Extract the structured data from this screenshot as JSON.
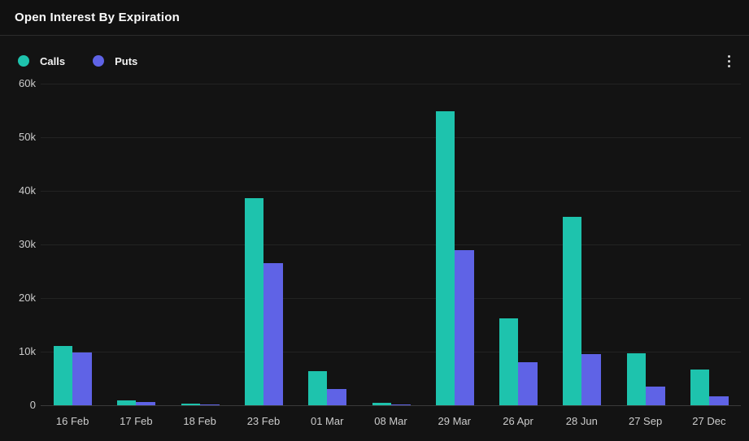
{
  "header": {
    "title": "Open Interest By Expiration"
  },
  "legend": {
    "items": [
      {
        "label": "Calls",
        "color": "#1ec3ad"
      },
      {
        "label": "Puts",
        "color": "#5f63e6"
      }
    ]
  },
  "menu": {
    "kebab_icon": "more-options"
  },
  "colors": {
    "background": "#131313",
    "grid": "#222322",
    "axis_text": "#cccccc",
    "calls": "#1ec3ad",
    "puts": "#5f63e6"
  },
  "chart_data": {
    "type": "bar",
    "title": "Open Interest By Expiration",
    "categories": [
      "16 Feb",
      "17 Feb",
      "18 Feb",
      "23 Feb",
      "01 Mar",
      "08 Mar",
      "29 Mar",
      "26 Apr",
      "28 Jun",
      "27 Sep",
      "27 Dec"
    ],
    "series": [
      {
        "name": "Calls",
        "color": "#1ec3ad",
        "values": [
          11000,
          900,
          300,
          38600,
          6400,
          500,
          54800,
          16200,
          35200,
          9700,
          6700
        ]
      },
      {
        "name": "Puts",
        "color": "#5f63e6",
        "values": [
          9800,
          600,
          100,
          26500,
          3100,
          200,
          28900,
          8000,
          9500,
          3500,
          1600
        ]
      }
    ],
    "xlabel": "",
    "ylabel": "",
    "ylim": [
      0,
      60000
    ],
    "yticks": [
      {
        "value": 0,
        "label": "0"
      },
      {
        "value": 10000,
        "label": "10k"
      },
      {
        "value": 20000,
        "label": "20k"
      },
      {
        "value": 30000,
        "label": "30k"
      },
      {
        "value": 40000,
        "label": "40k"
      },
      {
        "value": 50000,
        "label": "50k"
      },
      {
        "value": 60000,
        "label": "60k"
      }
    ],
    "grid": true,
    "legend_position": "top-left"
  }
}
